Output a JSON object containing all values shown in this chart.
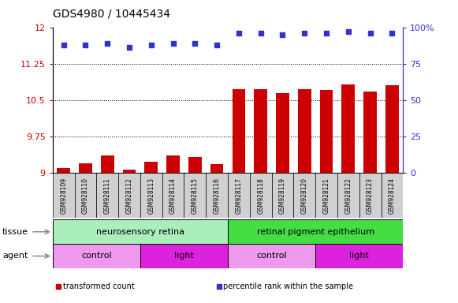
{
  "title": "GDS4980 / 10445434",
  "samples": [
    "GSM928109",
    "GSM928110",
    "GSM928111",
    "GSM928112",
    "GSM928113",
    "GSM928114",
    "GSM928115",
    "GSM928116",
    "GSM928117",
    "GSM928118",
    "GSM928119",
    "GSM928120",
    "GSM928121",
    "GSM928122",
    "GSM928123",
    "GSM928124"
  ],
  "transformed_count": [
    9.1,
    9.2,
    9.35,
    9.07,
    9.22,
    9.35,
    9.33,
    9.18,
    10.72,
    10.73,
    10.65,
    10.73,
    10.7,
    10.82,
    10.68,
    10.8
  ],
  "percentile_rank": [
    88,
    88,
    89,
    86,
    88,
    89,
    89,
    88,
    96,
    96,
    95,
    96,
    96,
    97,
    96,
    96
  ],
  "ylim_left": [
    9.0,
    12.0
  ],
  "ylim_right": [
    0,
    100
  ],
  "yticks_left": [
    9.0,
    9.75,
    10.5,
    11.25,
    12.0
  ],
  "yticks_right": [
    0,
    25,
    50,
    75,
    100
  ],
  "ytick_labels_left": [
    "9",
    "9.75",
    "10.5",
    "11.25",
    "12"
  ],
  "ytick_labels_right": [
    "0",
    "25",
    "50",
    "75",
    "100%"
  ],
  "hlines": [
    9.75,
    10.5,
    11.25
  ],
  "bar_color": "#cc0000",
  "dot_color": "#3333cc",
  "tissue_groups": [
    {
      "label": "neurosensory retina",
      "start": 0,
      "end": 8,
      "color": "#aaeebb"
    },
    {
      "label": "retinal pigment epithelium",
      "start": 8,
      "end": 16,
      "color": "#44dd44"
    }
  ],
  "agent_groups": [
    {
      "label": "control",
      "start": 0,
      "end": 4,
      "color": "#ee99ee"
    },
    {
      "label": "light",
      "start": 4,
      "end": 8,
      "color": "#dd22dd"
    },
    {
      "label": "control",
      "start": 8,
      "end": 12,
      "color": "#ee99ee"
    },
    {
      "label": "light",
      "start": 12,
      "end": 16,
      "color": "#dd22dd"
    }
  ],
  "legend_items": [
    {
      "label": "transformed count",
      "color": "#cc0000"
    },
    {
      "label": "percentile rank within the sample",
      "color": "#3333cc"
    }
  ],
  "background_color": "#ffffff",
  "plot_bg_color": "#ffffff",
  "xtick_bg_color": "#d0d0d0",
  "bar_width": 0.6,
  "title_fontsize": 10,
  "axis_fontsize": 8,
  "label_fontsize": 8,
  "row_fontsize": 8
}
